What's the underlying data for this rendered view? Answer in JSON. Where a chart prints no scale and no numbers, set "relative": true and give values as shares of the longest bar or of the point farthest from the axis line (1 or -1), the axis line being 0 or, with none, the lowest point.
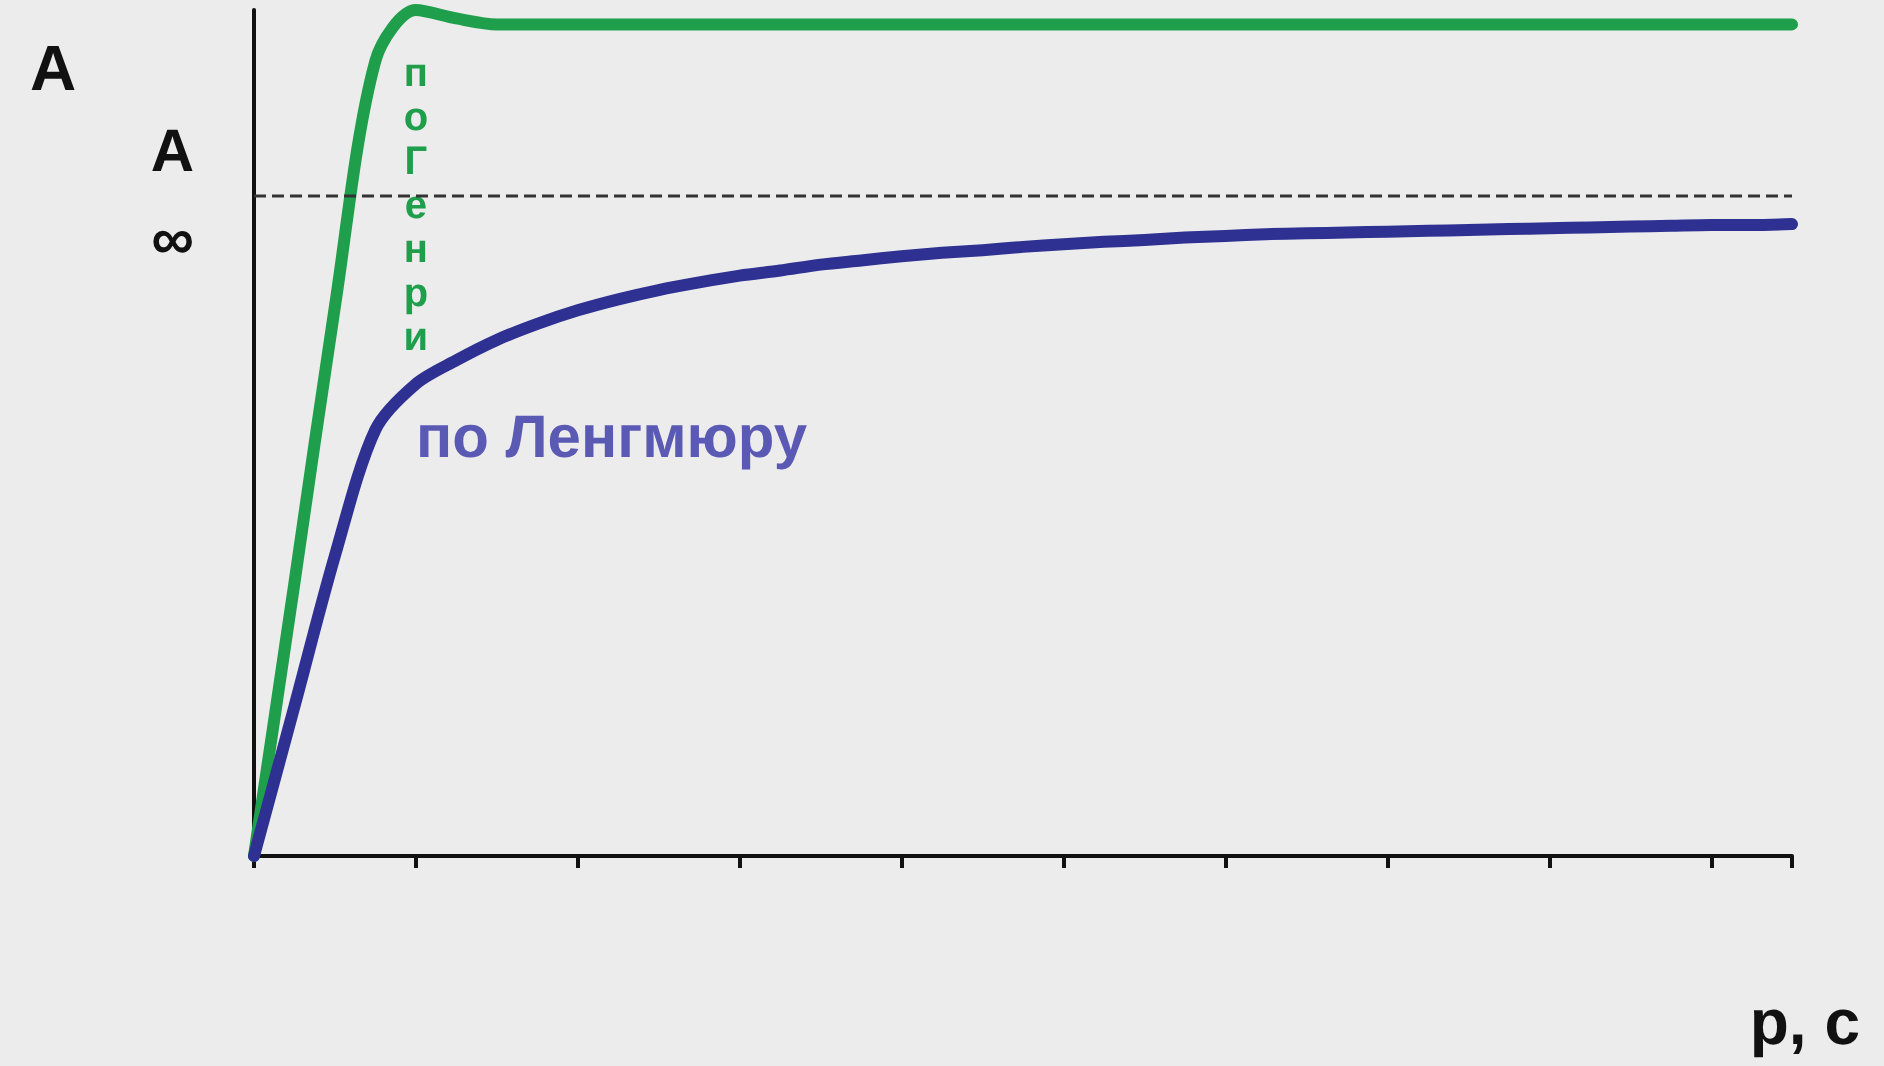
{
  "chart_data": {
    "type": "line",
    "relative": true,
    "ylabel": "A",
    "xlabel": "p, c",
    "categories": [
      null,
      null,
      null,
      null,
      null,
      null,
      null,
      null,
      null,
      null,
      null,
      null,
      null,
      null,
      null,
      null,
      null,
      null,
      null,
      null,
      null,
      null,
      null,
      null,
      null,
      null,
      null,
      null,
      null,
      null,
      null,
      null,
      null,
      null,
      null,
      null,
      null,
      null,
      null
    ],
    "series": [
      {
        "name": "по Генри",
        "color": "#1f9e4c",
        "values": [
          0,
          0.323,
          0.65,
          0.94,
          1,
          0.99,
          0.983,
          0.983,
          0.983,
          0.983,
          0.983,
          0.983,
          0.983,
          0.983,
          0.983,
          0.983,
          0.983,
          0.983,
          0.983,
          0.983,
          0.983,
          0.983,
          0.983,
          0.983,
          0.983,
          0.983,
          0.983,
          0.983,
          0.983,
          0.983,
          0.983,
          0.983,
          0.983,
          0.983,
          0.983,
          0.983,
          0.983,
          0.983,
          0.983
        ]
      },
      {
        "name": "по Ленгмюру",
        "color": "#2e3192",
        "values": [
          0,
          0.177,
          0.355,
          0.504,
          0.558,
          0.586,
          0.61,
          0.629,
          0.645,
          0.658,
          0.669,
          0.678,
          0.686,
          0.692,
          0.699,
          0.704,
          0.709,
          0.713,
          0.716,
          0.72,
          0.723,
          0.726,
          0.728,
          0.731,
          0.733,
          0.735,
          0.736,
          0.737,
          0.738,
          0.739,
          0.74,
          0.741,
          0.742,
          0.743,
          0.744,
          0.745,
          0.746,
          0.746,
          0.747
        ]
      }
    ],
    "ref_lines": [
      {
        "axis": "y",
        "value": 0.78,
        "label": "A∞",
        "color": "#333333",
        "line_style": "dashed"
      }
    ],
    "grid": false,
    "legend": false,
    "line_style": "solid",
    "marker": "none"
  }
}
